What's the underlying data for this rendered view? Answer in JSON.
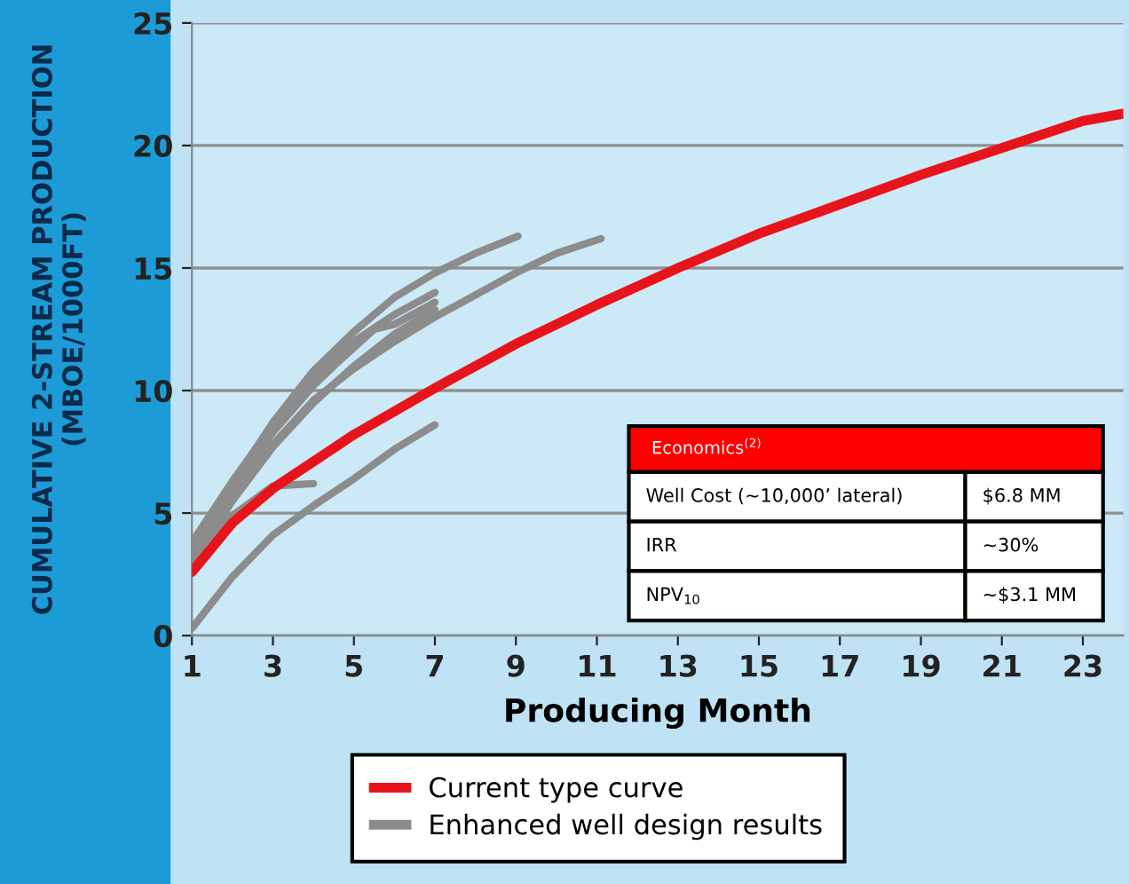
{
  "chart_data": {
    "type": "line",
    "xlabel": "Producing Month",
    "ylabel": "CUMULATIVE 2-STREAM PRODUCTION\n(MBOE/1000FT)",
    "xlim": [
      1,
      24
    ],
    "xticks": [
      1,
      3,
      5,
      7,
      9,
      11,
      13,
      15,
      17,
      19,
      21,
      23
    ],
    "ylim": [
      0,
      25
    ],
    "yticks": [
      0,
      5,
      10,
      15,
      20,
      25
    ],
    "grid": "y",
    "legend": "bottom",
    "series": [
      {
        "name": "Enhanced well design results",
        "color": "#8c8c8c",
        "x": [
          1,
          2,
          3,
          4,
          5,
          6,
          7,
          8,
          9.05
        ],
        "values": [
          3.6,
          6.2,
          8.7,
          10.8,
          12.4,
          13.8,
          14.8,
          15.6,
          16.3
        ]
      },
      {
        "color": "#8c8c8c",
        "x": [
          1,
          2,
          3,
          4,
          5,
          6,
          7,
          8,
          9,
          10,
          11.1
        ],
        "values": [
          3.2,
          5.6,
          7.8,
          9.6,
          10.9,
          12.0,
          13.0,
          13.9,
          14.8,
          15.6,
          16.2
        ]
      },
      {
        "color": "#8c8c8c",
        "x": [
          1,
          2,
          3,
          4,
          5,
          6,
          7
        ],
        "values": [
          3.8,
          6.3,
          8.6,
          10.5,
          12.0,
          13.1,
          14.0
        ]
      },
      {
        "color": "#8c8c8c",
        "x": [
          1,
          2,
          3,
          4,
          4.5,
          5.5,
          6,
          7
        ],
        "values": [
          3.4,
          6.0,
          8.3,
          10.2,
          11.0,
          12.5,
          12.7,
          13.6
        ]
      },
      {
        "color": "#8c8c8c",
        "x": [
          1,
          2,
          3,
          4,
          5,
          6,
          7
        ],
        "values": [
          3.0,
          5.5,
          7.7,
          9.5,
          11.0,
          12.3,
          13.3
        ]
      },
      {
        "color": "#8c8c8c",
        "x": [
          1,
          2,
          3,
          4,
          5,
          6,
          7
        ],
        "values": [
          0.3,
          2.4,
          4.1,
          5.3,
          6.4,
          7.6,
          8.6
        ]
      },
      {
        "color": "#8c8c8c",
        "x": [
          1,
          2,
          3,
          4
        ],
        "values": [
          3.3,
          4.9,
          6.1,
          6.2
        ]
      },
      {
        "name": "Current type curve",
        "color": "#e8141c",
        "x": [
          1,
          2,
          3,
          5,
          7,
          9,
          11,
          13,
          15,
          17,
          19,
          21,
          23,
          24
        ],
        "values": [
          2.6,
          4.6,
          6.0,
          8.2,
          10.1,
          11.9,
          13.5,
          15.0,
          16.4,
          17.6,
          18.8,
          19.9,
          21.0,
          21.3
        ]
      }
    ],
    "annotations": [
      "Economics$^{(2)}$",
      "Well Cost (~10,000’ lateral)",
      "$6.8 MM",
      "IRR",
      "~30%",
      "NPV$_{10}$",
      "~$3.1 MM"
    ]
  }
}
